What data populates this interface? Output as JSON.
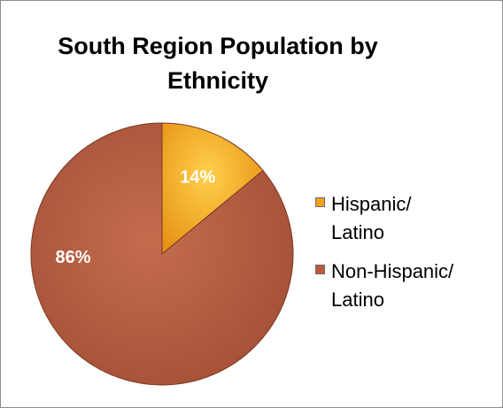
{
  "chart_data": {
    "type": "pie",
    "title": "South Region Population by Ethnicity",
    "categories": [
      "Hispanic/ Latino",
      "Non-Hispanic/ Latino"
    ],
    "values": [
      14,
      86
    ],
    "data_labels": [
      "14%",
      "86%"
    ],
    "colors": [
      "#f2a21b",
      "#b85a3d"
    ],
    "legend_position": "right"
  },
  "legend": {
    "items": [
      {
        "line1": "Hispanic/",
        "line2": "Latino",
        "color": "#f2a21b"
      },
      {
        "line1": "Non-Hispanic/",
        "line2": "Latino",
        "color": "#b85a3d"
      }
    ]
  }
}
